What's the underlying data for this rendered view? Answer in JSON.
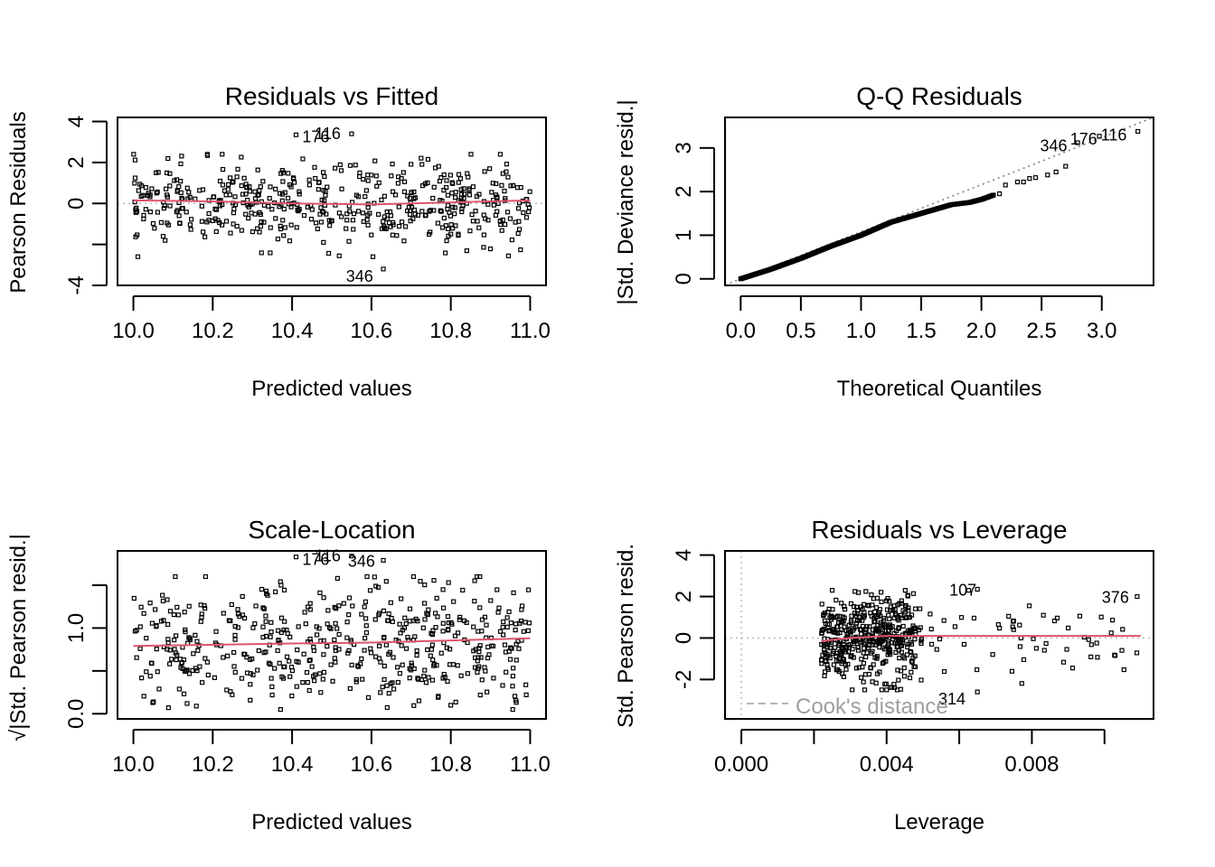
{
  "chart_data": [
    {
      "type": "scatter",
      "id": "rvf",
      "title": "Residuals vs Fitted",
      "xlabel": "Predicted values",
      "ylabel": "Pearson Residuals",
      "xlim": [
        9.96,
        11.04
      ],
      "ylim": [
        -4,
        4.2
      ],
      "xticks": [
        10.0,
        10.2,
        10.4,
        10.6,
        10.8,
        11.0
      ],
      "xtick_labels": [
        "10.0",
        "10.2",
        "10.4",
        "10.6",
        "10.8",
        "11.0"
      ],
      "yticks": [
        -4,
        -2,
        0,
        2,
        4
      ],
      "ytick_labels": [
        "-4",
        "",
        "0",
        "2",
        "4"
      ],
      "reference_line": {
        "y": 0,
        "style": "dotted",
        "color": "#bebebe"
      },
      "smooth_line": {
        "color": "#df536b",
        "x": [
          10.0,
          10.2,
          10.4,
          10.6,
          10.8,
          11.0
        ],
        "y": [
          0.15,
          0.1,
          0.0,
          -0.05,
          0.05,
          0.15
        ]
      },
      "n_points": 500,
      "point_spread": {
        "x_range": [
          10.0,
          11.0
        ],
        "y_sd": 1.0,
        "y_clip": [
          -2.6,
          2.4
        ]
      },
      "highlight_points": [
        {
          "label": "176",
          "x": 10.41,
          "y": 3.35
        },
        {
          "label": "116",
          "x": 10.55,
          "y": 3.4
        },
        {
          "label": "346",
          "x": 10.63,
          "y": -3.2
        }
      ],
      "annotations": [
        {
          "text": "176",
          "x": 10.46,
          "y": 3.25
        },
        {
          "text": "116",
          "x": 10.49,
          "y": 3.4
        },
        {
          "text": "346",
          "x": 10.57,
          "y": -3.55
        }
      ]
    },
    {
      "type": "scatter",
      "id": "qq",
      "title": "Q-Q Residuals",
      "xlabel": "Theoretical Quantiles",
      "ylabel": "|Std. Deviance resid.|",
      "xlim": [
        -0.13,
        3.43
      ],
      "ylim": [
        -0.15,
        3.7
      ],
      "xticks": [
        0.0,
        0.5,
        1.0,
        1.5,
        2.0,
        2.5,
        3.0
      ],
      "xtick_labels": [
        "0.0",
        "0.5",
        "1.0",
        "1.5",
        "2.0",
        "2.5",
        "3.0"
      ],
      "yticks": [
        0,
        1,
        2,
        3
      ],
      "ytick_labels": [
        "0",
        "1",
        "2",
        "3"
      ],
      "reference_line": {
        "slope": 1.08,
        "intercept": 0,
        "style": "dotted",
        "color": "#808080"
      },
      "curve_points": [
        [
          0.0,
          0.0
        ],
        [
          0.25,
          0.22
        ],
        [
          0.5,
          0.47
        ],
        [
          0.75,
          0.75
        ],
        [
          1.0,
          1.0
        ],
        [
          1.25,
          1.3
        ],
        [
          1.5,
          1.5
        ],
        [
          1.75,
          1.7
        ],
        [
          1.9,
          1.75
        ],
        [
          2.0,
          1.82
        ],
        [
          2.1,
          1.92
        ],
        [
          2.15,
          1.95
        ],
        [
          2.2,
          2.15
        ],
        [
          2.3,
          2.22
        ],
        [
          2.35,
          2.22
        ],
        [
          2.4,
          2.3
        ],
        [
          2.45,
          2.32
        ],
        [
          2.55,
          2.38
        ],
        [
          2.62,
          2.45
        ],
        [
          2.7,
          2.58
        ]
      ],
      "highlight_points": [
        {
          "label": "346",
          "x": 2.8,
          "y": 3.12
        },
        {
          "label": "176",
          "x": 2.98,
          "y": 3.27
        },
        {
          "label": "116",
          "x": 3.3,
          "y": 3.38
        }
      ],
      "annotations": [
        {
          "text": "346",
          "x": 2.6,
          "y": 3.05
        },
        {
          "text": "176",
          "x": 2.85,
          "y": 3.2
        },
        {
          "text": "116",
          "x": 3.1,
          "y": 3.3
        }
      ]
    },
    {
      "type": "scatter",
      "id": "sl",
      "title": "Scale-Location",
      "xlabel": "Predicted values",
      "ylabel": "√|Std. Pearson resid.|",
      "xlim": [
        9.96,
        11.04
      ],
      "ylim": [
        -0.06,
        1.9
      ],
      "xticks": [
        10.0,
        10.2,
        10.4,
        10.6,
        10.8,
        11.0
      ],
      "xtick_labels": [
        "10.0",
        "10.2",
        "10.4",
        "10.6",
        "10.8",
        "11.0"
      ],
      "yticks": [
        0.0,
        0.5,
        1.0,
        1.5
      ],
      "ytick_labels": [
        "0.0",
        "",
        "1.0",
        ""
      ],
      "smooth_line": {
        "color": "#df536b",
        "x": [
          10.0,
          10.4,
          10.6,
          11.0
        ],
        "y": [
          0.79,
          0.82,
          0.83,
          0.88
        ]
      },
      "n_points": 500,
      "point_spread": {
        "x_range": [
          10.0,
          11.0
        ],
        "y_range": [
          0.05,
          1.6
        ]
      },
      "highlight_points": [
        {
          "label": "176",
          "x": 10.41,
          "y": 1.83
        },
        {
          "label": "116",
          "x": 10.55,
          "y": 1.84
        },
        {
          "label": "346",
          "x": 10.63,
          "y": 1.79
        }
      ],
      "annotations": [
        {
          "text": "176",
          "x": 10.46,
          "y": 1.8
        },
        {
          "text": "116",
          "x": 10.49,
          "y": 1.84
        },
        {
          "text": "346",
          "x": 10.575,
          "y": 1.78
        }
      ]
    },
    {
      "type": "scatter",
      "id": "rvl",
      "title": "Residuals vs Leverage",
      "xlabel": "Leverage",
      "ylabel": "Std. Pearson resid.",
      "xlim": [
        -0.00045,
        0.01135
      ],
      "ylim": [
        -3.9,
        4.2
      ],
      "xticks": [
        0.0,
        0.002,
        0.004,
        0.006,
        0.008,
        0.01
      ],
      "xtick_labels": [
        "0.000",
        "",
        "0.004",
        "",
        "0.008",
        ""
      ],
      "yticks": [
        -2,
        0,
        2,
        4
      ],
      "ytick_labels": [
        "-2",
        "0",
        "2",
        "4"
      ],
      "reference_lines": [
        {
          "y": 0,
          "style": "dotted",
          "color": "#bebebe"
        },
        {
          "x": 0,
          "style": "dotted",
          "color": "#bebebe"
        }
      ],
      "smooth_line": {
        "color": "#df536b",
        "x": [
          0.0022,
          0.003,
          0.004,
          0.006,
          0.008,
          0.011
        ],
        "y": [
          -0.15,
          0.0,
          0.1,
          0.1,
          0.1,
          0.1
        ]
      },
      "n_points": 500,
      "point_spread": {
        "dense_x_range": [
          0.0022,
          0.0048
        ],
        "sparse_x_range": [
          0.0048,
          0.011
        ],
        "y_sd": 1.0
      },
      "highlight_points": [
        {
          "label": "107",
          "x": 0.0065,
          "y": 2.35
        },
        {
          "label": "376",
          "x": 0.0109,
          "y": 2.0
        },
        {
          "label": "314",
          "x": 0.0065,
          "y": -2.6
        }
      ],
      "annotations": [
        {
          "text": "107",
          "x": 0.0061,
          "y": 2.3
        },
        {
          "text": "376",
          "x": 0.0103,
          "y": 1.95
        },
        {
          "text": "314",
          "x": 0.0058,
          "y": -2.95
        }
      ],
      "legend": {
        "text": "Cook's distance",
        "line_style": "dashed",
        "color": "#9e9e9e",
        "position": "bottom-left"
      }
    }
  ]
}
